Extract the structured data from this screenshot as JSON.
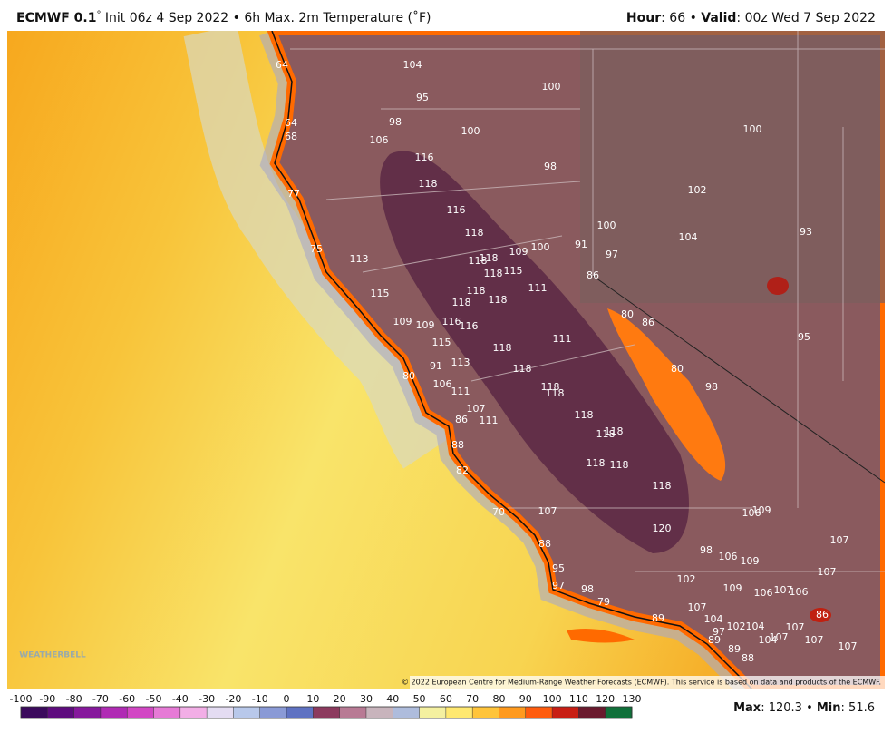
{
  "header": {
    "model": "ECMWF 0.1",
    "degree": "°",
    "title": " Init 06z 4 Sep 2022 • 6h Max. 2m Temperature (˚F)",
    "hour_label": "Hour",
    "hour_text": ": 66 • ",
    "valid_label": "Valid",
    "valid_text": ": 00z Wed 7 Sep 2022"
  },
  "map": {
    "labels": [
      104,
      100,
      95,
      98,
      106,
      100,
      100,
      116,
      98,
      118,
      102,
      116,
      100,
      118,
      104,
      93,
      109,
      100,
      91,
      97,
      118,
      118,
      118,
      115,
      86,
      113,
      115,
      111,
      118,
      118,
      118,
      80,
      86,
      109,
      109,
      116,
      116,
      115,
      111,
      118,
      95,
      91,
      113,
      118,
      80,
      80,
      106,
      111,
      118,
      118,
      98,
      107,
      86,
      111,
      118,
      118,
      118,
      88,
      82,
      118,
      118,
      118,
      70,
      107,
      106,
      109,
      120,
      107,
      88,
      98,
      106,
      109,
      95,
      107,
      102,
      97,
      98,
      109,
      106,
      107,
      106,
      79,
      107,
      86,
      89,
      104,
      102,
      104,
      107,
      97,
      89,
      104,
      107,
      107,
      89,
      107,
      88,
      64,
      64,
      68,
      77,
      75
    ],
    "logo": "WEATHERBELL",
    "copyright": "© 2022 European Centre for Medium-Range Weather Forecasts (ECMWF). This service is based on data and products of the ECMWF."
  },
  "colorbar": {
    "ticks": [
      -100,
      -90,
      -80,
      -70,
      -60,
      -50,
      -40,
      -30,
      -20,
      -10,
      0,
      10,
      20,
      30,
      40,
      50,
      60,
      70,
      80,
      90,
      100,
      110,
      120,
      130
    ],
    "colors": [
      "#3b0a5c",
      "#5e0c7e",
      "#86189c",
      "#b02bb4",
      "#d247c4",
      "#e67ad6",
      "#f2aee6",
      "#e4dcf2",
      "#b8c8ea",
      "#8a9ad6",
      "#5f72c2",
      "#8c3a5e",
      "#b87a94",
      "#c8b4bc",
      "#aebcdc",
      "#f4f0a0",
      "#ffe870",
      "#ffc43a",
      "#ff9a1e",
      "#ff5c0e",
      "#c81e14",
      "#6a1a2e",
      "#10703a"
    ]
  },
  "stats": {
    "max_label": "Max",
    "max_sep": ": ",
    "max": 120.3,
    "sep": " • ",
    "min_label": "Min",
    "min_sep": ": ",
    "min": 51.6
  }
}
